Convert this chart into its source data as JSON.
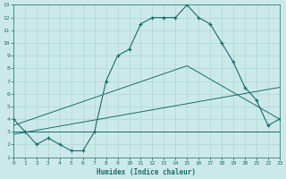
{
  "main_x": [
    0,
    1,
    2,
    3,
    4,
    5,
    6,
    7,
    8,
    9,
    10,
    11,
    12,
    13,
    14,
    15,
    16,
    17,
    18,
    19,
    20,
    21,
    22,
    23
  ],
  "main_y": [
    4,
    3,
    2,
    2.5,
    2,
    1.5,
    1.5,
    3,
    7,
    9,
    9.5,
    11.5,
    12,
    12,
    12,
    13,
    12,
    11.5,
    10,
    8.5,
    6.5,
    5.5,
    3.5,
    4
  ],
  "line1_x": [
    0,
    23
  ],
  "line1_y": [
    3.0,
    3.0
  ],
  "line2_x": [
    0,
    23
  ],
  "line2_y": [
    2.8,
    6.5
  ],
  "line3_x": [
    0,
    15,
    23
  ],
  "line3_y": [
    3.5,
    8.2,
    4.0
  ],
  "bg_color": "#cce9ea",
  "line_color": "#1a6b6b",
  "grid_color": "#aed4d4",
  "xlabel": "Humidex (Indice chaleur)",
  "ylim": [
    1,
    13
  ],
  "xlim": [
    0,
    23
  ],
  "yticks": [
    1,
    2,
    3,
    4,
    5,
    6,
    7,
    8,
    9,
    10,
    11,
    12,
    13
  ],
  "xticks": [
    0,
    1,
    2,
    3,
    4,
    5,
    6,
    7,
    8,
    9,
    10,
    11,
    12,
    13,
    14,
    15,
    16,
    17,
    18,
    19,
    20,
    21,
    22,
    23
  ]
}
